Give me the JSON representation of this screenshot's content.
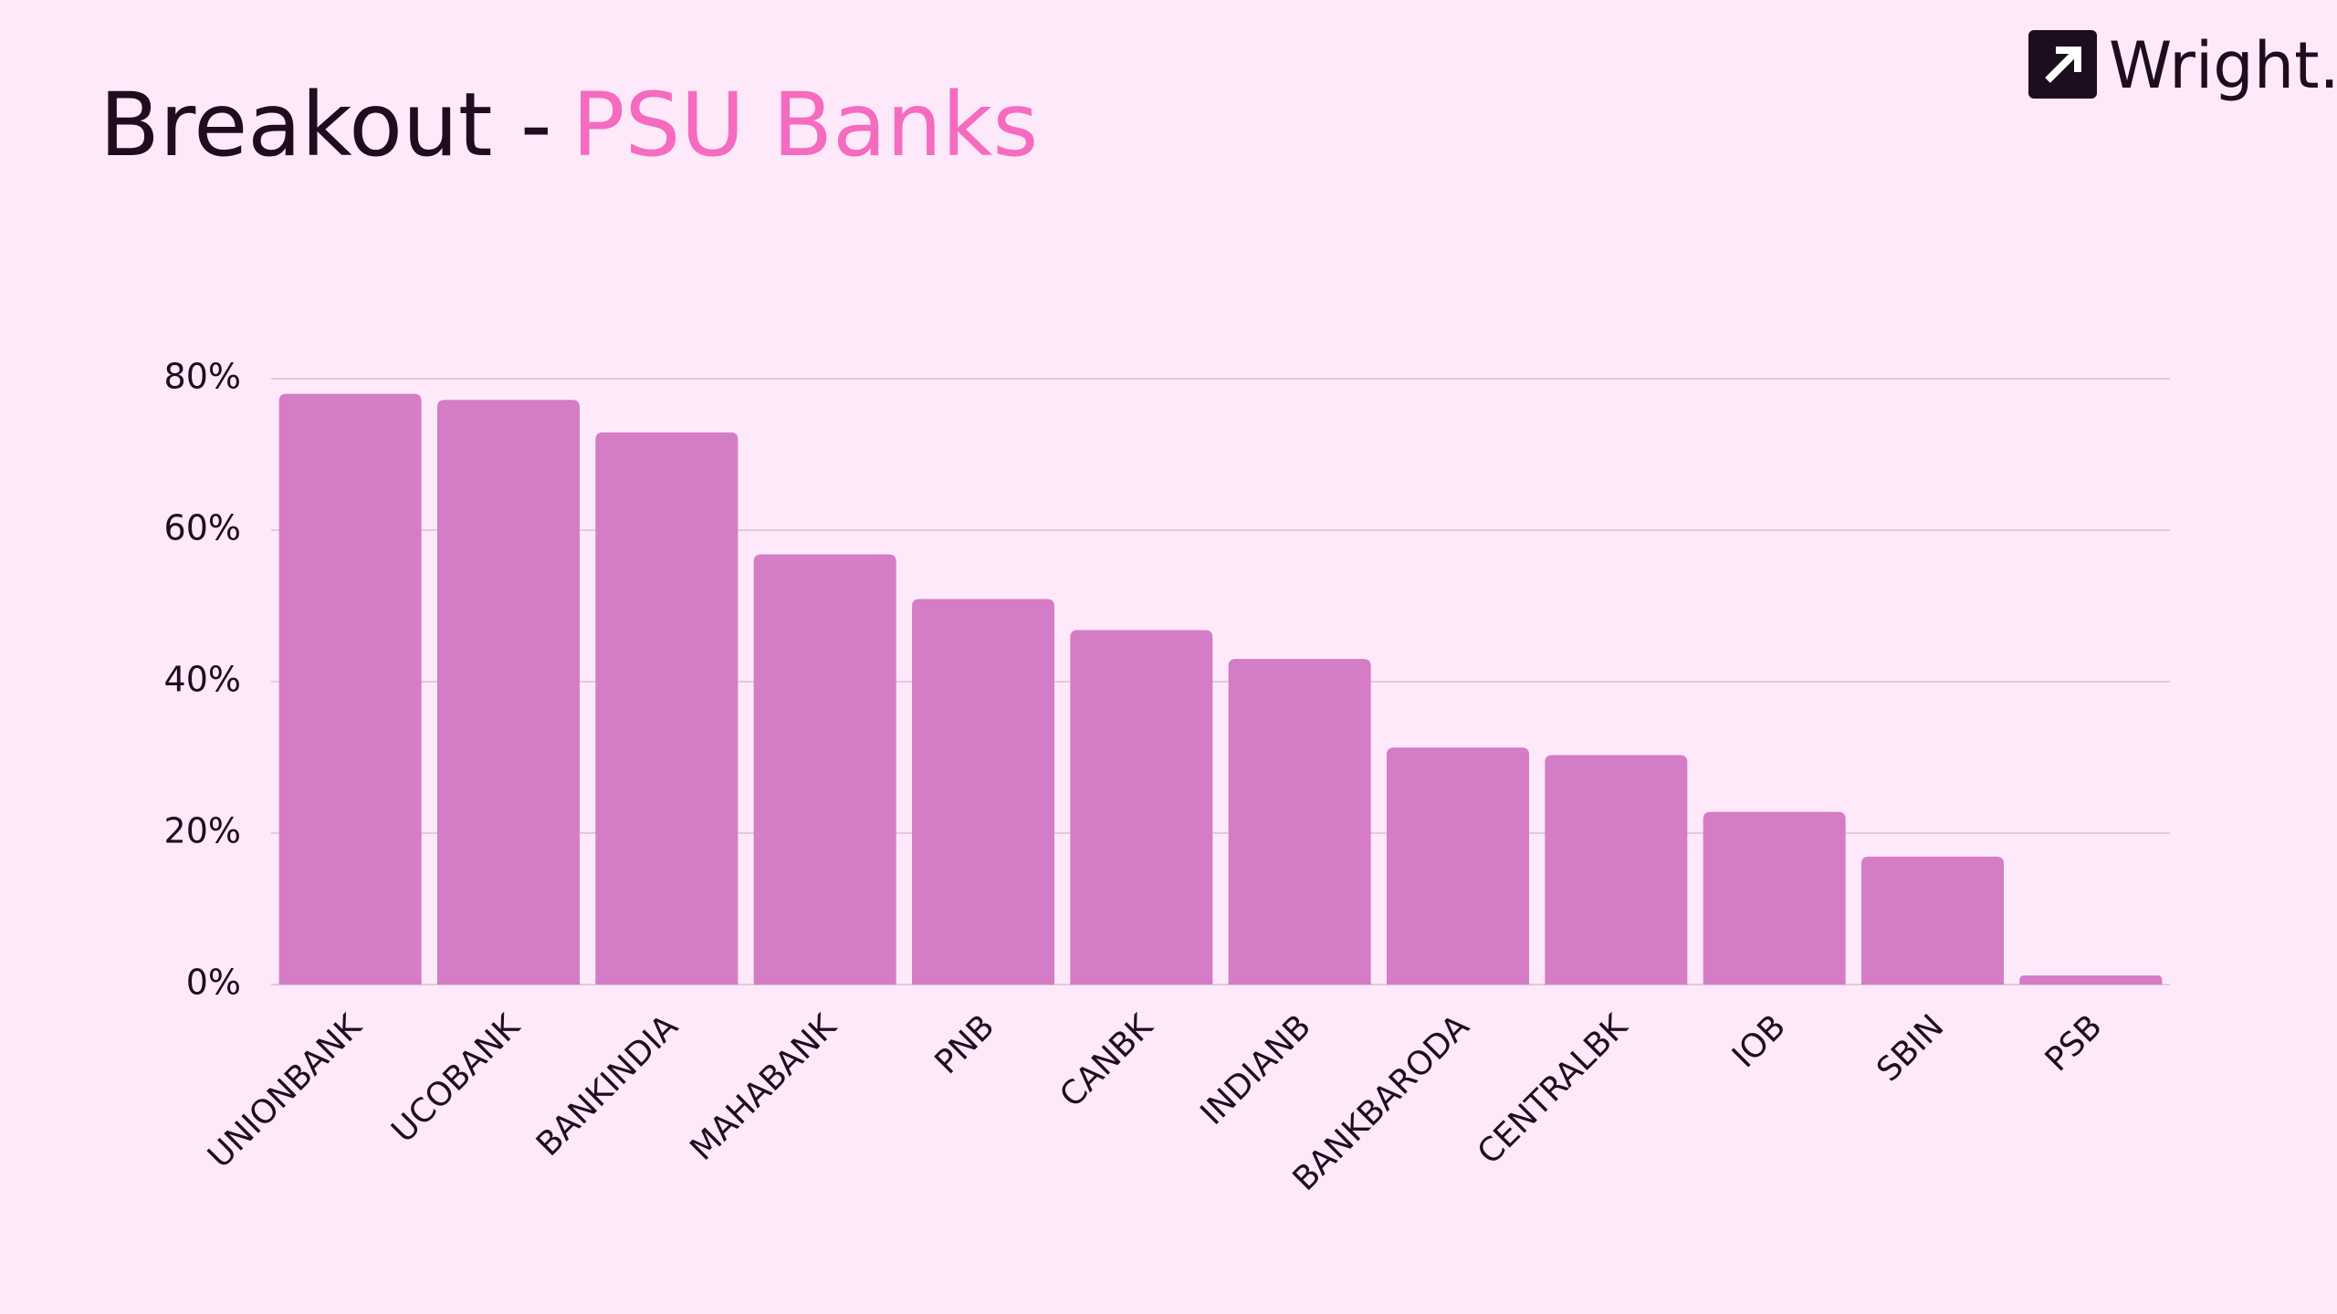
{
  "chart_data": {
    "type": "bar",
    "title": "Breakout -",
    "title_highlight": "PSU Banks",
    "brand": "Wright.",
    "categories": [
      "UNIONBANK",
      "UCOBANK",
      "BANKINDIA",
      "MAHABANK",
      "PNB",
      "CANBK",
      "INDIANB",
      "BANKBARODA",
      "CENTRALBK",
      "IOB",
      "SBIN",
      "PSB"
    ],
    "values": [
      78.0,
      77.2,
      72.9,
      56.8,
      50.9,
      46.8,
      43.0,
      31.3,
      30.3,
      22.8,
      16.9,
      1.2
    ],
    "color": "#d47cc6",
    "ylim": [
      0,
      80
    ],
    "yticks": [
      {
        "value": 0,
        "label": "0%"
      },
      {
        "value": 20,
        "label": "20%"
      },
      {
        "value": 40,
        "label": "40%"
      },
      {
        "value": 60,
        "label": "60%"
      },
      {
        "value": 80,
        "label": "80%"
      }
    ],
    "grid": true
  }
}
